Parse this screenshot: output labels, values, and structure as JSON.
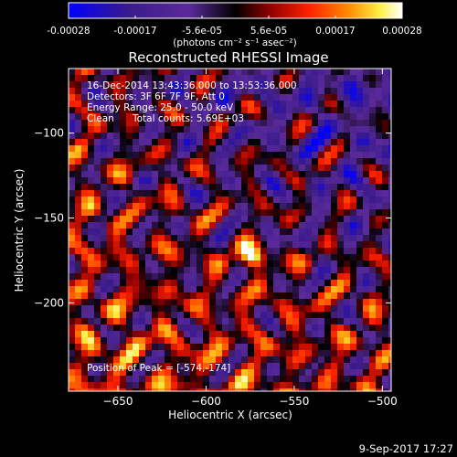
{
  "chart_data": {
    "type": "heatmap",
    "title": "Reconstructed RHESSI Image",
    "xlabel": "Heliocentric X (arcsec)",
    "ylabel": "Heliocentric Y (arcsec)",
    "xlim": [
      -678,
      -495
    ],
    "ylim": [
      -252,
      -62
    ],
    "x_ticks": [
      -650,
      -600,
      -550,
      -500
    ],
    "y_ticks": [
      -100,
      -150,
      -200
    ],
    "colorbar": {
      "range": [
        -0.00028,
        0.00028
      ],
      "ticks": [
        "-0.00028",
        "-0.00017",
        "-5.6e-05",
        "5.6e-05",
        "0.00017",
        "0.00028"
      ],
      "unit_label": "(photons cm⁻² s⁻¹ asec⁻²)",
      "colormap": [
        "#0000ff",
        "#3a1a8c",
        "#5a2a9a",
        "#000000",
        "#8b0000",
        "#ff2000",
        "#ff8c00",
        "#ffee40",
        "#ffffff"
      ]
    },
    "annotations": [
      "16-Dec-2014 13:43:36.000 to 13:53:36.000",
      "Detectors: 3F 6F 7F 9F, Att 0",
      "Energy Range: 25.0 - 50.0 keV",
      "Clean",
      "Total counts: 5.69E+03"
    ],
    "peak_label": "Position of Peak = [-574,-174]",
    "peak": {
      "x": -574,
      "y": -174
    },
    "footer": "9-Sep-2017 17:27"
  }
}
